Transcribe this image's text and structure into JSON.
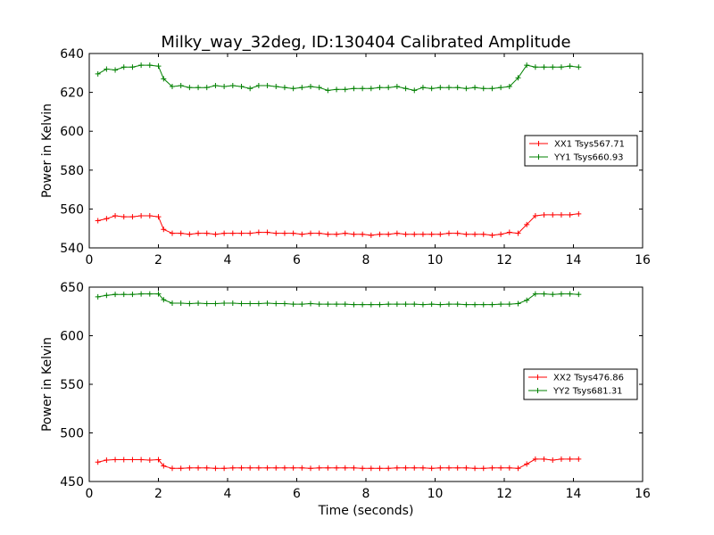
{
  "figure": {
    "title": "Milky_way_32deg, ID:130404 Calibrated Amplitude",
    "xlabel": "Time (seconds)"
  },
  "chart_data": [
    {
      "type": "line",
      "ylabel": "Power in Kelvin",
      "xlim": [
        0,
        16
      ],
      "ylim": [
        540,
        640
      ],
      "xticks": [
        0,
        2,
        4,
        6,
        8,
        10,
        12,
        14,
        16
      ],
      "yticks": [
        540,
        560,
        580,
        600,
        620,
        640
      ],
      "legend_position": "right",
      "x": [
        0.25,
        0.5,
        0.75,
        1.0,
        1.25,
        1.5,
        1.75,
        2.0,
        2.15,
        2.4,
        2.65,
        2.9,
        3.15,
        3.4,
        3.65,
        3.9,
        4.15,
        4.4,
        4.65,
        4.9,
        5.15,
        5.4,
        5.65,
        5.9,
        6.15,
        6.4,
        6.65,
        6.9,
        7.15,
        7.4,
        7.65,
        7.9,
        8.15,
        8.4,
        8.65,
        8.9,
        9.15,
        9.4,
        9.65,
        9.9,
        10.15,
        10.4,
        10.65,
        10.9,
        11.15,
        11.4,
        11.65,
        11.9,
        12.15,
        12.4,
        12.65,
        12.9,
        13.15,
        13.4,
        13.65,
        13.9,
        14.15
      ],
      "series": [
        {
          "name": "XX1 Tsys567.71",
          "color": "#ff0000",
          "values": [
            554,
            555,
            556.5,
            556,
            556,
            556.5,
            556.5,
            556,
            549.5,
            547.5,
            547.5,
            547,
            547.5,
            547.5,
            547,
            547.5,
            547.5,
            547.5,
            547.5,
            548,
            548,
            547.5,
            547.5,
            547.5,
            547,
            547.5,
            547.5,
            547,
            547,
            547.5,
            547,
            547,
            546.5,
            547,
            547,
            547.5,
            547,
            547,
            547,
            547,
            547,
            547.5,
            547.5,
            547,
            547,
            547,
            546.5,
            547,
            548,
            547.5,
            552,
            556.5,
            557,
            557,
            557,
            557,
            557.5
          ]
        },
        {
          "name": "YY1 Tsys660.93",
          "color": "#008000",
          "values": [
            629.5,
            632,
            631.5,
            633,
            633,
            634,
            634,
            633.5,
            627,
            623,
            623.5,
            622.5,
            622.5,
            622.5,
            623.5,
            623,
            623.5,
            623,
            622,
            623.5,
            623.5,
            623,
            622.5,
            622,
            622.5,
            623,
            622.5,
            621,
            621.5,
            621.5,
            622,
            622,
            622,
            622.5,
            622.5,
            623,
            622,
            621,
            622.5,
            622,
            622.5,
            622.5,
            622.5,
            622,
            622.5,
            622,
            622,
            622.5,
            623,
            627.5,
            634,
            633,
            633,
            633,
            633,
            633.5,
            633
          ]
        }
      ]
    },
    {
      "type": "line",
      "ylabel": "Power in Kelvin",
      "xlim": [
        0,
        16
      ],
      "ylim": [
        450,
        650
      ],
      "xticks": [
        0,
        2,
        4,
        6,
        8,
        10,
        12,
        14,
        16
      ],
      "yticks": [
        450,
        500,
        550,
        600,
        650
      ],
      "legend_position": "right",
      "x": [
        0.25,
        0.5,
        0.75,
        1.0,
        1.25,
        1.5,
        1.75,
        2.0,
        2.15,
        2.4,
        2.65,
        2.9,
        3.15,
        3.4,
        3.65,
        3.9,
        4.15,
        4.4,
        4.65,
        4.9,
        5.15,
        5.4,
        5.65,
        5.9,
        6.15,
        6.4,
        6.65,
        6.9,
        7.15,
        7.4,
        7.65,
        7.9,
        8.15,
        8.4,
        8.65,
        8.9,
        9.15,
        9.4,
        9.65,
        9.9,
        10.15,
        10.4,
        10.65,
        10.9,
        11.15,
        11.4,
        11.65,
        11.9,
        12.15,
        12.4,
        12.65,
        12.9,
        13.15,
        13.4,
        13.65,
        13.9,
        14.15
      ],
      "series": [
        {
          "name": "XX2 Tsys476.86",
          "color": "#ff0000",
          "values": [
            470,
            472,
            472.5,
            472.5,
            472.5,
            472.5,
            472,
            472.5,
            466,
            463.5,
            463.5,
            464,
            464,
            464,
            463.5,
            463.5,
            464,
            464,
            464,
            464,
            464,
            464,
            464,
            464,
            464,
            463.5,
            464,
            464,
            464,
            464,
            464,
            463.5,
            463.5,
            463.5,
            463.5,
            464,
            464,
            464,
            464,
            463.5,
            464,
            464,
            464,
            464,
            463.5,
            463.5,
            464,
            464,
            464,
            463.5,
            468,
            473,
            473,
            472,
            473,
            473,
            473
          ]
        },
        {
          "name": "YY2 Tsys681.31",
          "color": "#008000",
          "values": [
            640,
            641.5,
            642.5,
            642.5,
            642.5,
            643,
            643,
            643,
            637,
            633.5,
            633.5,
            633,
            633.5,
            633,
            633,
            633.5,
            633.5,
            633,
            633,
            633,
            633.5,
            633,
            633,
            632.5,
            632.5,
            633,
            632.5,
            632.5,
            632.5,
            632.5,
            632,
            632,
            632,
            632,
            632.5,
            632.5,
            632.5,
            632.5,
            632,
            632.5,
            632,
            632.5,
            632.5,
            632,
            632,
            632,
            632,
            632.5,
            632.5,
            633,
            636.5,
            643,
            643,
            642.5,
            643,
            643,
            642.5
          ]
        }
      ]
    }
  ]
}
